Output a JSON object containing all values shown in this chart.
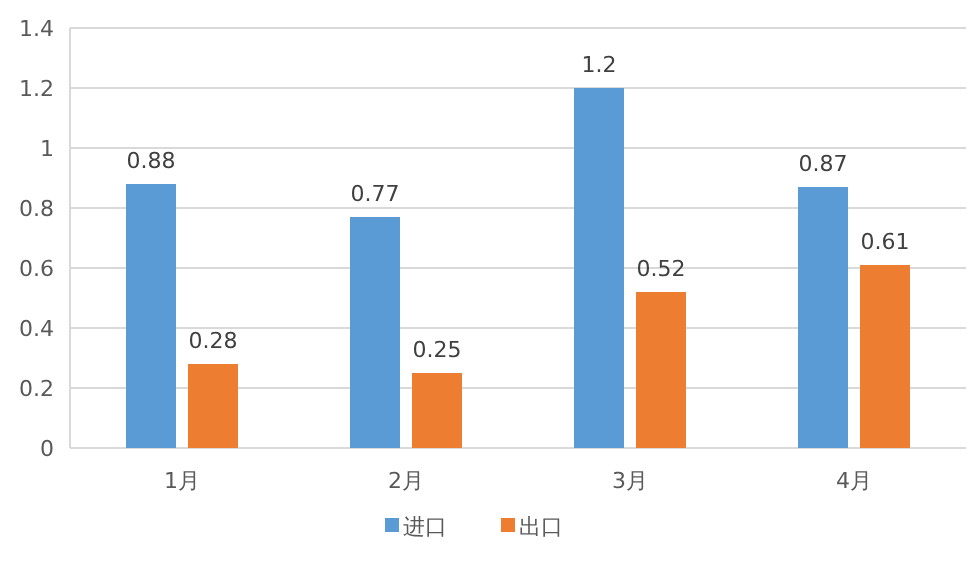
{
  "chart_data": {
    "type": "bar",
    "categories": [
      "1月",
      "2月",
      "3月",
      "4月"
    ],
    "series": [
      {
        "name": "进口",
        "color": "#5b9bd5",
        "values": [
          0.88,
          0.77,
          1.2,
          0.87
        ]
      },
      {
        "name": "出口",
        "color": "#ed7d31",
        "values": [
          0.28,
          0.25,
          0.52,
          0.61
        ]
      }
    ],
    "ylim": [
      0,
      1.4
    ],
    "yticks": [
      0,
      0.2,
      0.4,
      0.6,
      0.8,
      1,
      1.2,
      1.4
    ],
    "grid": "y",
    "data_labels": true,
    "legend": "bottom"
  }
}
